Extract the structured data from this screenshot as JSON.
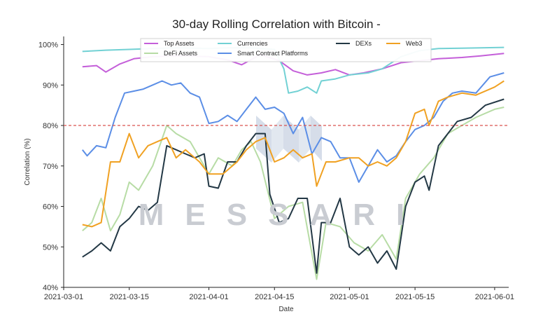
{
  "chart_data": {
    "type": "line",
    "title": "30-day Rolling Correlation with Bitcoin -",
    "xlabel": "Date",
    "ylabel": "Correlation (%)",
    "ylim": [
      40,
      102
    ],
    "xlim": [
      "2021-03-01",
      "2021-06-04"
    ],
    "x_ticks": [
      {
        "date": "2021-03-01",
        "label": "2021-03-01"
      },
      {
        "date": "2021-03-15",
        "label": "2021-03-15"
      },
      {
        "date": "2021-04-01",
        "label": "2021-04-01"
      },
      {
        "date": "2021-04-15",
        "label": "2021-04-15"
      },
      {
        "date": "2021-05-01",
        "label": "2021-05-01"
      },
      {
        "date": "2021-05-15",
        "label": "2021-05-15"
      },
      {
        "date": "2021-06-01",
        "label": "2021-06-01"
      }
    ],
    "y_ticks": [
      {
        "value": 40,
        "label": "40%"
      },
      {
        "value": 50,
        "label": "50%"
      },
      {
        "value": 60,
        "label": "60%"
      },
      {
        "value": 70,
        "label": "70%"
      },
      {
        "value": 80,
        "label": "80%"
      },
      {
        "value": 90,
        "label": "90%"
      },
      {
        "value": 100,
        "label": "100%"
      }
    ],
    "reference_line": {
      "value": 80,
      "color": "#d9534f",
      "style": "dashed"
    },
    "legend_position": "top",
    "watermark": "MESSARI",
    "series": [
      {
        "name": "Top Assets",
        "color": "#c45fd9",
        "points": [
          [
            "2021-03-05",
            94.5
          ],
          [
            "2021-03-08",
            94.8
          ],
          [
            "2021-03-10",
            93.2
          ],
          [
            "2021-03-13",
            95.2
          ],
          [
            "2021-03-16",
            96.5
          ],
          [
            "2021-03-20",
            97.0
          ],
          [
            "2021-03-25",
            97.2
          ],
          [
            "2021-04-01",
            97.0
          ],
          [
            "2021-04-05",
            96.2
          ],
          [
            "2021-04-08",
            95.0
          ],
          [
            "2021-04-12",
            97.5
          ],
          [
            "2021-04-16",
            96.0
          ],
          [
            "2021-04-19",
            93.5
          ],
          [
            "2021-04-22",
            92.5
          ],
          [
            "2021-04-25",
            93.0
          ],
          [
            "2021-04-28",
            93.8
          ],
          [
            "2021-05-01",
            92.5
          ],
          [
            "2021-05-04",
            93.0
          ],
          [
            "2021-05-08",
            94.0
          ],
          [
            "2021-05-12",
            95.5
          ],
          [
            "2021-05-16",
            96.0
          ],
          [
            "2021-05-20",
            96.5
          ],
          [
            "2021-05-25",
            96.8
          ],
          [
            "2021-05-29",
            97.2
          ],
          [
            "2021-06-03",
            97.8
          ]
        ]
      },
      {
        "name": "DeFi Assets",
        "color": "#b7dca5",
        "points": [
          [
            "2021-03-05",
            54
          ],
          [
            "2021-03-07",
            56
          ],
          [
            "2021-03-09",
            62
          ],
          [
            "2021-03-11",
            54
          ],
          [
            "2021-03-13",
            58
          ],
          [
            "2021-03-15",
            66
          ],
          [
            "2021-03-17",
            64
          ],
          [
            "2021-03-20",
            70
          ],
          [
            "2021-03-23",
            80
          ],
          [
            "2021-03-25",
            78
          ],
          [
            "2021-03-28",
            76
          ],
          [
            "2021-04-01",
            68
          ],
          [
            "2021-04-03",
            72
          ],
          [
            "2021-04-06",
            70
          ],
          [
            "2021-04-08",
            74
          ],
          [
            "2021-04-10",
            76
          ],
          [
            "2021-04-12",
            71
          ],
          [
            "2021-04-15",
            57
          ],
          [
            "2021-04-18",
            60
          ],
          [
            "2021-04-21",
            61
          ],
          [
            "2021-04-24",
            42
          ],
          [
            "2021-04-26",
            56
          ],
          [
            "2021-04-29",
            55
          ],
          [
            "2021-05-02",
            51
          ],
          [
            "2021-05-05",
            49
          ],
          [
            "2021-05-08",
            53
          ],
          [
            "2021-05-11",
            47
          ],
          [
            "2021-05-13",
            62
          ],
          [
            "2021-05-16",
            68
          ],
          [
            "2021-05-19",
            72
          ],
          [
            "2021-05-22",
            78
          ],
          [
            "2021-05-25",
            80
          ],
          [
            "2021-05-28",
            82
          ],
          [
            "2021-06-01",
            84
          ],
          [
            "2021-06-03",
            84.5
          ]
        ]
      },
      {
        "name": "Currencies",
        "color": "#72d1d4",
        "points": [
          [
            "2021-03-05",
            98.3
          ],
          [
            "2021-03-10",
            98.6
          ],
          [
            "2021-03-15",
            98.8
          ],
          [
            "2021-03-20",
            99.0
          ],
          [
            "2021-03-25",
            99.2
          ],
          [
            "2021-04-01",
            99.0
          ],
          [
            "2021-04-05",
            99.2
          ],
          [
            "2021-04-10",
            99.2
          ],
          [
            "2021-04-15",
            98.8
          ],
          [
            "2021-04-17",
            94.0
          ],
          [
            "2021-04-18",
            88.0
          ],
          [
            "2021-04-20",
            88.5
          ],
          [
            "2021-04-22",
            89.5
          ],
          [
            "2021-04-24",
            88.0
          ],
          [
            "2021-04-25",
            91.0
          ],
          [
            "2021-04-28",
            91.5
          ],
          [
            "2021-05-01",
            92.5
          ],
          [
            "2021-05-05",
            93.0
          ],
          [
            "2021-05-08",
            94.0
          ],
          [
            "2021-05-12",
            97.0
          ],
          [
            "2021-05-16",
            98.5
          ],
          [
            "2021-05-20",
            99.0
          ],
          [
            "2021-05-25",
            99.1
          ],
          [
            "2021-05-29",
            99.2
          ],
          [
            "2021-06-03",
            99.3
          ]
        ]
      },
      {
        "name": "Smart Contract Platforms",
        "color": "#5b8ee6",
        "points": [
          [
            "2021-03-05",
            74
          ],
          [
            "2021-03-06",
            72.5
          ],
          [
            "2021-03-08",
            75
          ],
          [
            "2021-03-10",
            74.5
          ],
          [
            "2021-03-12",
            82
          ],
          [
            "2021-03-14",
            88
          ],
          [
            "2021-03-16",
            88.5
          ],
          [
            "2021-03-18",
            89
          ],
          [
            "2021-03-20",
            90
          ],
          [
            "2021-03-22",
            91
          ],
          [
            "2021-03-24",
            90
          ],
          [
            "2021-03-26",
            90.5
          ],
          [
            "2021-03-28",
            88
          ],
          [
            "2021-03-30",
            87
          ],
          [
            "2021-04-01",
            80.5
          ],
          [
            "2021-04-03",
            81
          ],
          [
            "2021-04-05",
            82.5
          ],
          [
            "2021-04-07",
            81
          ],
          [
            "2021-04-09",
            84
          ],
          [
            "2021-04-11",
            87
          ],
          [
            "2021-04-13",
            84
          ],
          [
            "2021-04-15",
            84.5
          ],
          [
            "2021-04-17",
            83
          ],
          [
            "2021-04-19",
            78
          ],
          [
            "2021-04-21",
            82
          ],
          [
            "2021-04-23",
            73
          ],
          [
            "2021-04-25",
            77
          ],
          [
            "2021-04-27",
            76
          ],
          [
            "2021-04-29",
            72
          ],
          [
            "2021-05-01",
            72
          ],
          [
            "2021-05-03",
            66
          ],
          [
            "2021-05-05",
            70
          ],
          [
            "2021-05-07",
            74
          ],
          [
            "2021-05-09",
            71
          ],
          [
            "2021-05-11",
            72.5
          ],
          [
            "2021-05-13",
            76
          ],
          [
            "2021-05-15",
            79
          ],
          [
            "2021-05-17",
            80
          ],
          [
            "2021-05-19",
            82
          ],
          [
            "2021-05-21",
            86
          ],
          [
            "2021-05-23",
            88
          ],
          [
            "2021-05-25",
            88.5
          ],
          [
            "2021-05-28",
            88
          ],
          [
            "2021-05-31",
            92
          ],
          [
            "2021-06-03",
            93
          ]
        ]
      },
      {
        "name": "DEXs",
        "color": "#233845",
        "points": [
          [
            "2021-03-05",
            47.5
          ],
          [
            "2021-03-07",
            49
          ],
          [
            "2021-03-09",
            51
          ],
          [
            "2021-03-11",
            49
          ],
          [
            "2021-03-13",
            55
          ],
          [
            "2021-03-15",
            57
          ],
          [
            "2021-03-17",
            60
          ],
          [
            "2021-03-19",
            59
          ],
          [
            "2021-03-21",
            61
          ],
          [
            "2021-03-23",
            75
          ],
          [
            "2021-03-25",
            74
          ],
          [
            "2021-03-27",
            73
          ],
          [
            "2021-03-29",
            72
          ],
          [
            "2021-03-31",
            73
          ],
          [
            "2021-04-01",
            65
          ],
          [
            "2021-04-03",
            64.5
          ],
          [
            "2021-04-05",
            71
          ],
          [
            "2021-04-07",
            71
          ],
          [
            "2021-04-09",
            75
          ],
          [
            "2021-04-11",
            78
          ],
          [
            "2021-04-13",
            78
          ],
          [
            "2021-04-14",
            63
          ],
          [
            "2021-04-16",
            56
          ],
          [
            "2021-04-18",
            57
          ],
          [
            "2021-04-20",
            62
          ],
          [
            "2021-04-22",
            62
          ],
          [
            "2021-04-24",
            43.5
          ],
          [
            "2021-04-25",
            56
          ],
          [
            "2021-04-27",
            56
          ],
          [
            "2021-04-29",
            62
          ],
          [
            "2021-05-01",
            50
          ],
          [
            "2021-05-03",
            48
          ],
          [
            "2021-05-05",
            50
          ],
          [
            "2021-05-07",
            46
          ],
          [
            "2021-05-09",
            49
          ],
          [
            "2021-05-11",
            44.5
          ],
          [
            "2021-05-13",
            60
          ],
          [
            "2021-05-15",
            66
          ],
          [
            "2021-05-17",
            67.5
          ],
          [
            "2021-05-18",
            64
          ],
          [
            "2021-05-20",
            75
          ],
          [
            "2021-05-22",
            78
          ],
          [
            "2021-05-24",
            81
          ],
          [
            "2021-05-27",
            82
          ],
          [
            "2021-05-30",
            85
          ],
          [
            "2021-06-03",
            86.5
          ]
        ]
      },
      {
        "name": "Web3",
        "color": "#f0a122",
        "points": [
          [
            "2021-03-05",
            55.5
          ],
          [
            "2021-03-07",
            55
          ],
          [
            "2021-03-09",
            56
          ],
          [
            "2021-03-11",
            71
          ],
          [
            "2021-03-13",
            71
          ],
          [
            "2021-03-15",
            78
          ],
          [
            "2021-03-17",
            72
          ],
          [
            "2021-03-19",
            75
          ],
          [
            "2021-03-21",
            76
          ],
          [
            "2021-03-23",
            77
          ],
          [
            "2021-03-25",
            72
          ],
          [
            "2021-03-27",
            74
          ],
          [
            "2021-03-30",
            71
          ],
          [
            "2021-04-01",
            68
          ],
          [
            "2021-04-04",
            68
          ],
          [
            "2021-04-07",
            71
          ],
          [
            "2021-04-09",
            74
          ],
          [
            "2021-04-11",
            76
          ],
          [
            "2021-04-13",
            77
          ],
          [
            "2021-04-15",
            71
          ],
          [
            "2021-04-17",
            72
          ],
          [
            "2021-04-19",
            74
          ],
          [
            "2021-04-21",
            72
          ],
          [
            "2021-04-23",
            73
          ],
          [
            "2021-04-24",
            65
          ],
          [
            "2021-04-26",
            71
          ],
          [
            "2021-04-28",
            71
          ],
          [
            "2021-05-01",
            72
          ],
          [
            "2021-05-03",
            72
          ],
          [
            "2021-05-05",
            70
          ],
          [
            "2021-05-07",
            71
          ],
          [
            "2021-05-09",
            70
          ],
          [
            "2021-05-11",
            72
          ],
          [
            "2021-05-13",
            76
          ],
          [
            "2021-05-15",
            83
          ],
          [
            "2021-05-17",
            84
          ],
          [
            "2021-05-18",
            80
          ],
          [
            "2021-05-20",
            86
          ],
          [
            "2021-05-22",
            87
          ],
          [
            "2021-05-25",
            88
          ],
          [
            "2021-05-28",
            87.5
          ],
          [
            "2021-06-01",
            89.5
          ],
          [
            "2021-06-03",
            91
          ]
        ]
      }
    ]
  }
}
